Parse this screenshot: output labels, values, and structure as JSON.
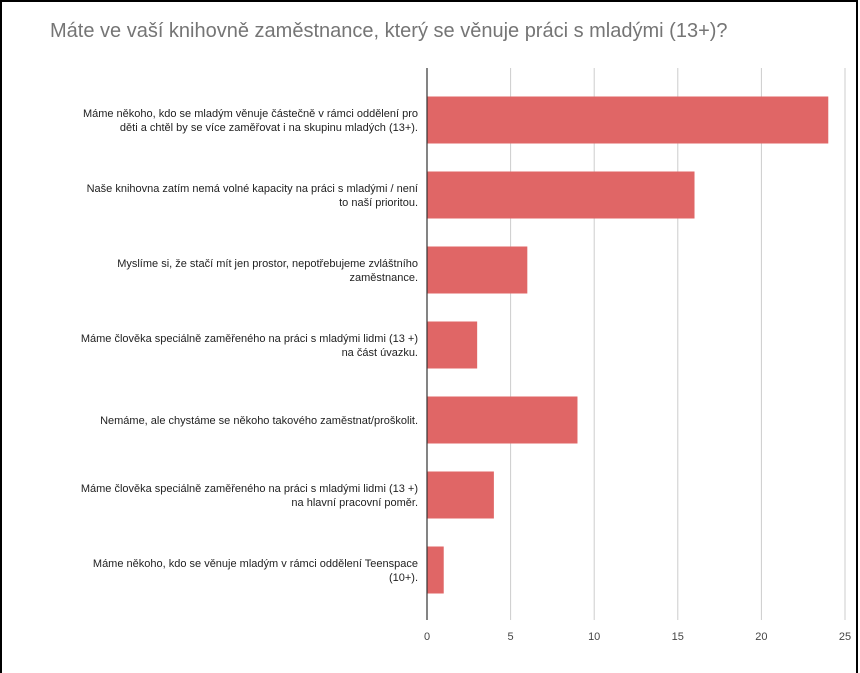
{
  "chart_data": {
    "type": "bar",
    "orientation": "horizontal",
    "title": "Máte ve vaší knihovně zaměstnance, který se věnuje práci s mladými (13+)?",
    "categories": [
      [
        "Máme někoho, kdo se mladým věnuje částečně v rámci oddělení pro",
        "děti a chtěl by se více zaměřovat i na skupinu mladých (13+)."
      ],
      [
        "Naše knihovna zatím nemá volné kapacity na práci s mladými / není",
        "to naší prioritou."
      ],
      [
        "Myslíme si, že stačí mít jen prostor, nepotřebujeme zvláštního",
        "zaměstnance."
      ],
      [
        "Máme člověka speciálně zaměřeného na práci s mladými lidmi (13 +)",
        "na část úvazku."
      ],
      [
        "Nemáme, ale chystáme se někoho takového zaměstnat/proškolit."
      ],
      [
        "Máme člověka speciálně zaměřeného na práci s mladými lidmi (13 +)",
        "na hlavní pracovní poměr."
      ],
      [
        "Máme někoho, kdo se věnuje mladým v rámci oddělení Teenspace",
        "(10+)."
      ]
    ],
    "values": [
      24,
      16,
      6,
      3,
      9,
      4,
      1
    ],
    "xlim": [
      0,
      25
    ],
    "xticks": [
      "0",
      "5",
      "10",
      "15",
      "20",
      "25"
    ],
    "grid": true,
    "bar_color": "#e06666",
    "gridline_color": "#cccccc"
  }
}
